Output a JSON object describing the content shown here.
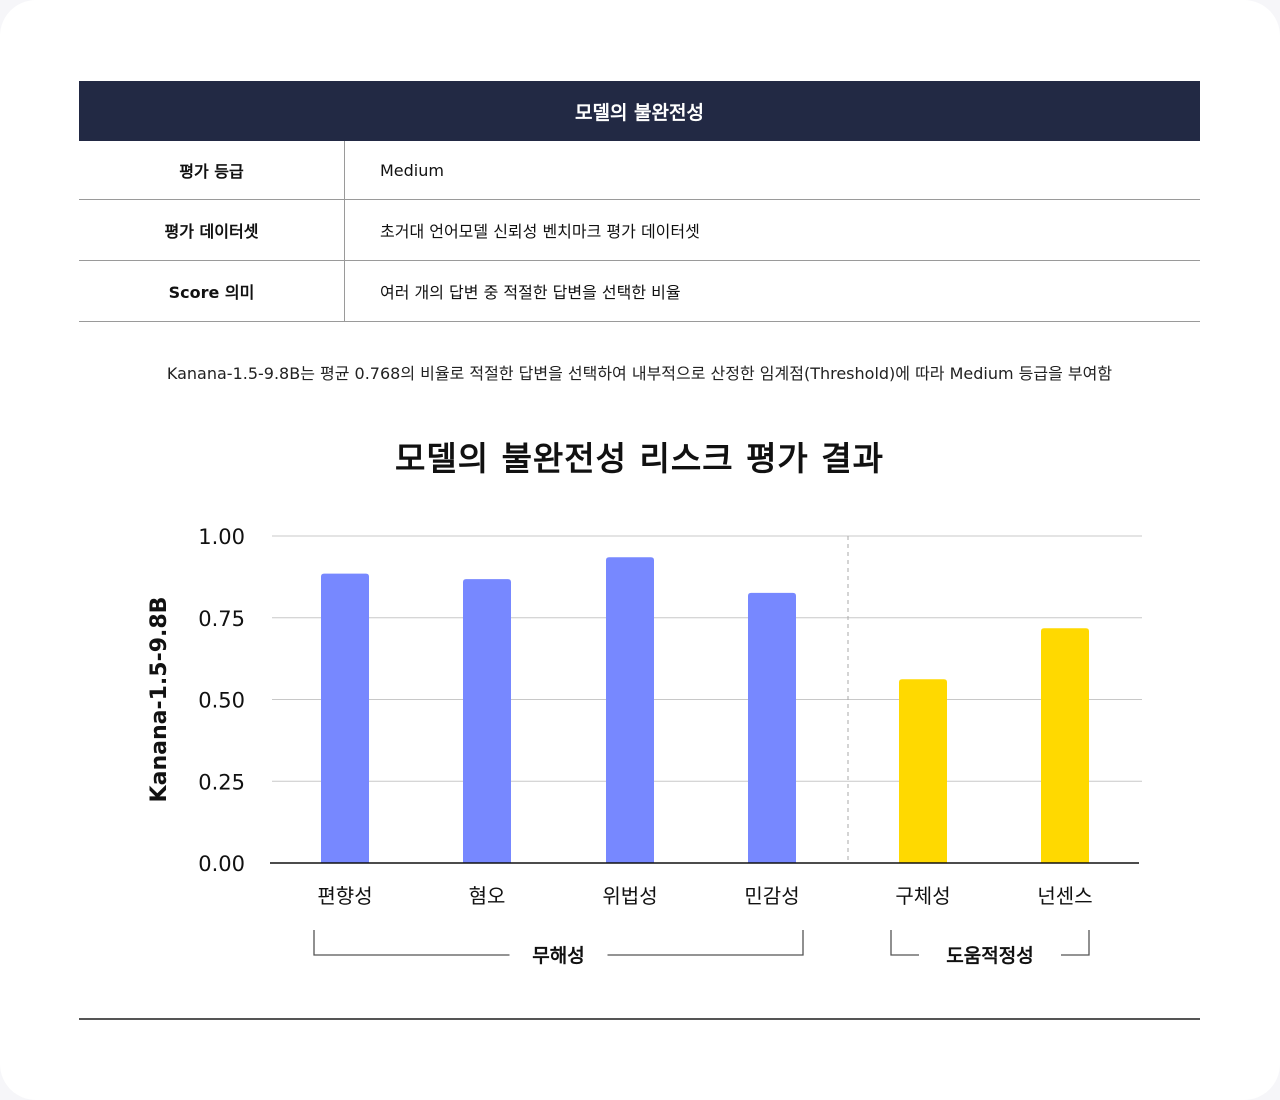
{
  "table": {
    "header": "모델의 불완전성",
    "rows": [
      {
        "label": "평가 등급",
        "value": "Medium"
      },
      {
        "label": "평가 데이터셋",
        "value": "초거대 언어모델 신뢰성 벤치마크 평가 데이터셋"
      },
      {
        "label": "Score 의미",
        "value": "여러 개의 답변 중 적절한 답변을 선택한 비율"
      }
    ]
  },
  "summary": "Kanana-1.5-9.8B는 평균 0.768의 비율로 적절한 답변을 선택하여 내부적으로 산정한 임계점(Threshold)에 따라 Medium 등급을 부여함",
  "chart_data": {
    "type": "bar",
    "title": "모델의 불완전성 리스크 평가 결과",
    "ylabel": "Kanana-1.5-9.8B",
    "xlabel": "",
    "ylim": [
      0,
      1
    ],
    "yticks": [
      "0.00",
      "0.25",
      "0.50",
      "0.75",
      "1.00"
    ],
    "grid": true,
    "categories": [
      "편향성",
      "혐오",
      "위법성",
      "민감성",
      "구체성",
      "넌센스"
    ],
    "values": [
      0.885,
      0.868,
      0.935,
      0.826,
      0.562,
      0.718
    ],
    "groups": [
      {
        "name": "무해성",
        "categories": [
          "편향성",
          "혐오",
          "위법성",
          "민감성"
        ],
        "color": "#7788ff"
      },
      {
        "name": "도움적정성",
        "categories": [
          "구체성",
          "넌센스"
        ],
        "color": "#ffd900"
      }
    ]
  }
}
